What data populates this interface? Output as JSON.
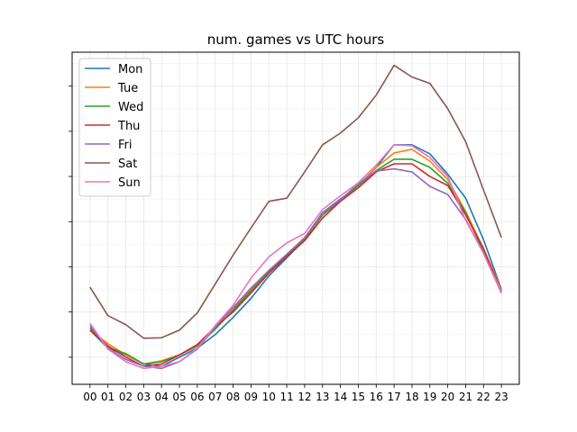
{
  "chart_data": {
    "type": "line",
    "title": "num. games vs UTC hours",
    "xlabel": "",
    "ylabel": "",
    "categories": [
      "00",
      "01",
      "02",
      "03",
      "04",
      "05",
      "06",
      "07",
      "08",
      "09",
      "10",
      "11",
      "12",
      "13",
      "14",
      "15",
      "16",
      "17",
      "18",
      "19",
      "20",
      "21",
      "22",
      "23"
    ],
    "ylim": [
      -0.6,
      6.75
    ],
    "grid": true,
    "legend_position": "top-left",
    "y_tick_labels_shown": false,
    "series": [
      {
        "name": "Mon",
        "color": "#1f77b4",
        "values": [
          0.6,
          0.2,
          0.05,
          -0.15,
          -0.2,
          0.0,
          0.2,
          0.5,
          0.88,
          1.3,
          1.8,
          2.2,
          2.6,
          3.2,
          3.5,
          3.8,
          4.2,
          4.7,
          4.7,
          4.5,
          4.05,
          3.52,
          2.6,
          1.5
        ]
      },
      {
        "name": "Tue",
        "color": "#ff7f0e",
        "values": [
          0.6,
          0.3,
          0.05,
          -0.15,
          -0.08,
          0.05,
          0.25,
          0.62,
          1.05,
          1.5,
          1.88,
          2.27,
          2.65,
          3.15,
          3.47,
          3.8,
          4.2,
          4.52,
          4.6,
          4.34,
          3.93,
          3.23,
          2.4,
          1.5
        ]
      },
      {
        "name": "Wed",
        "color": "#2ca02c",
        "values": [
          0.65,
          0.22,
          0.08,
          -0.15,
          -0.1,
          0.05,
          0.25,
          0.62,
          1.04,
          1.47,
          1.88,
          2.25,
          2.62,
          3.15,
          3.47,
          3.8,
          4.13,
          4.38,
          4.38,
          4.2,
          3.85,
          3.2,
          2.33,
          1.47
        ]
      },
      {
        "name": "Thu",
        "color": "#d62728",
        "values": [
          0.6,
          0.25,
          0.0,
          -0.2,
          -0.15,
          0.05,
          0.28,
          0.67,
          1.0,
          1.42,
          1.86,
          2.23,
          2.58,
          3.08,
          3.45,
          3.75,
          4.1,
          4.28,
          4.28,
          4.0,
          3.8,
          3.15,
          2.4,
          1.45
        ]
      },
      {
        "name": "Fri",
        "color": "#9467bd",
        "values": [
          0.7,
          0.2,
          -0.05,
          -0.2,
          -0.25,
          -0.1,
          0.18,
          0.67,
          1.1,
          1.53,
          1.92,
          2.28,
          2.64,
          3.2,
          3.48,
          3.84,
          4.12,
          4.17,
          4.1,
          3.78,
          3.6,
          3.05,
          2.3,
          1.42
        ]
      },
      {
        "name": "Sat",
        "color": "#8c564b",
        "values": [
          1.55,
          0.92,
          0.72,
          0.42,
          0.43,
          0.6,
          0.98,
          1.62,
          2.26,
          2.86,
          3.45,
          3.52,
          4.1,
          4.7,
          4.96,
          5.3,
          5.8,
          6.46,
          6.2,
          6.06,
          5.5,
          4.77,
          3.7,
          2.65
        ]
      },
      {
        "name": "Sun",
        "color": "#e377c2",
        "values": [
          0.75,
          0.18,
          -0.1,
          -0.25,
          -0.2,
          -0.1,
          0.2,
          0.7,
          1.15,
          1.75,
          2.22,
          2.53,
          2.74,
          3.27,
          3.57,
          3.86,
          4.25,
          4.7,
          4.68,
          4.42,
          4.0,
          3.03,
          2.3,
          1.45
        ]
      }
    ]
  }
}
